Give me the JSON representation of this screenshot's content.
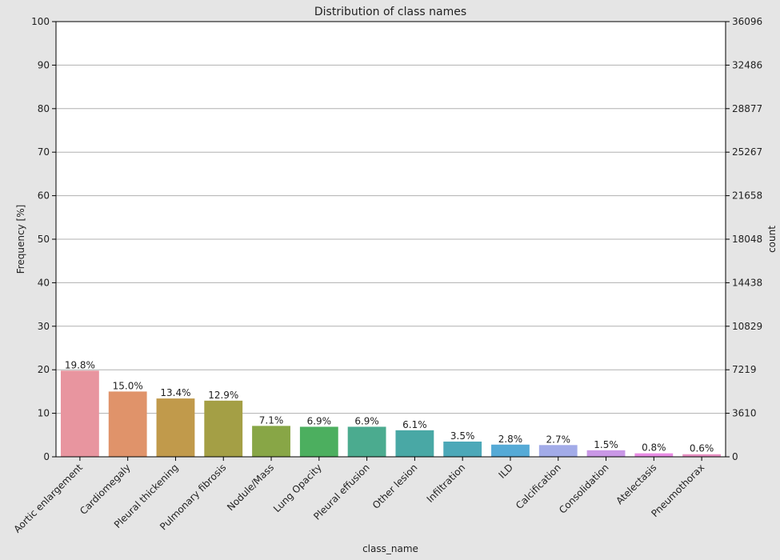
{
  "chart_data": {
    "type": "bar",
    "title": "Distribution of class names",
    "xlabel": "class_name",
    "ylabel": "Frequency [%]",
    "ylabel_right": "count",
    "ylim": [
      0,
      100
    ],
    "yticks": [
      0,
      10,
      20,
      30,
      40,
      50,
      60,
      70,
      80,
      90,
      100
    ],
    "yticks_right": [
      "0",
      "3610",
      "7219",
      "10829",
      "14438",
      "18048",
      "21658",
      "25267",
      "28877",
      "32486",
      "36096"
    ],
    "grid": "horizontal",
    "categories": [
      "Aortic enlargement",
      "Cardiomegaly",
      "Pleural thickening",
      "Pulmonary fibrosis",
      "Nodule/Mass",
      "Lung Opacity",
      "Pleural effusion",
      "Other lesion",
      "Infiltration",
      "ILD",
      "Calcification",
      "Consolidation",
      "Atelectasis",
      "Pneumothorax"
    ],
    "values": [
      19.8,
      15.0,
      13.4,
      12.9,
      7.1,
      6.9,
      6.9,
      6.1,
      3.5,
      2.8,
      2.7,
      1.5,
      0.8,
      0.6
    ],
    "labels": [
      "19.8%",
      "15.0%",
      "13.4%",
      "12.9%",
      "7.1%",
      "6.9%",
      "6.9%",
      "6.1%",
      "3.5%",
      "2.8%",
      "2.7%",
      "1.5%",
      "0.8%",
      "0.6%"
    ],
    "colors": [
      "#e8959f",
      "#e0936a",
      "#c19a4b",
      "#a49f45",
      "#88a646",
      "#4caf5f",
      "#4bab8f",
      "#49a8a5",
      "#4ca8b8",
      "#55aad6",
      "#a2abe8",
      "#c997e6",
      "#e88ce3",
      "#e891c3"
    ]
  }
}
